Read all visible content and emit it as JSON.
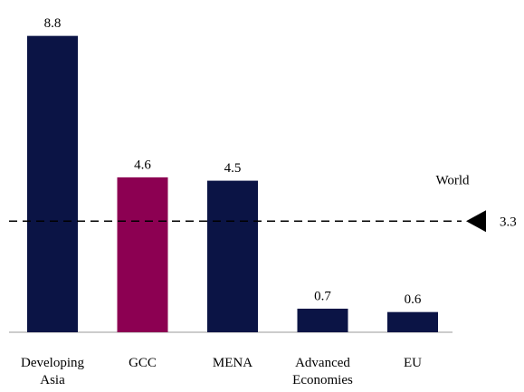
{
  "chart_data": {
    "type": "bar",
    "categories": [
      "Developing Asia",
      "GCC",
      "MENA",
      "Advanced Economies",
      "EU"
    ],
    "values": [
      8.8,
      4.6,
      4.5,
      0.7,
      0.6
    ],
    "colors": [
      "#0b1445",
      "#8c0052",
      "#0b1445",
      "#0b1445",
      "#0b1445"
    ],
    "reference": {
      "name": "World",
      "value": 3.3
    }
  }
}
